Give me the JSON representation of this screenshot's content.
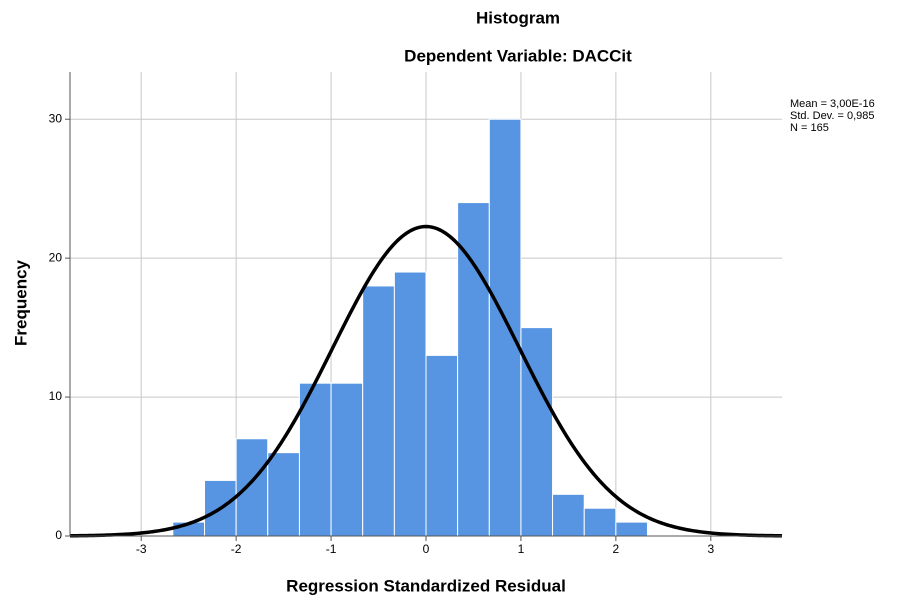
{
  "chart_data": {
    "type": "histogram",
    "title": "Histogram",
    "subtitle": "Dependent Variable: DACCit",
    "x_label": "Regression Standardized Residual",
    "y_label": "Frequency",
    "bins": [
      -2.667,
      -2.333,
      -2,
      -1.667,
      -1.333,
      -1,
      -0.667,
      -0.333,
      0,
      0.333,
      0.667,
      1,
      1.333,
      1.667,
      2,
      2.333
    ],
    "values": [
      1,
      4,
      7,
      6,
      11,
      11,
      18,
      19,
      13,
      24,
      30,
      15,
      3,
      2,
      1
    ],
    "color": "#5795e3",
    "xlim": [
      -3.75,
      3.75
    ],
    "xticks": [
      -3,
      -2,
      -1,
      0,
      1,
      2,
      3
    ],
    "ylim": [
      0,
      33.4
    ],
    "yticks": [
      0,
      10,
      20,
      30
    ],
    "grid": true,
    "stats": [
      {
        "label": "Mean = 3,00E-16",
        "value": 3e-16
      },
      {
        "label": "Std. Dev. = 0,985",
        "value": 0.985
      },
      {
        "label": "N = 165",
        "value": 165
      }
    ],
    "curve_color": "#000000"
  }
}
